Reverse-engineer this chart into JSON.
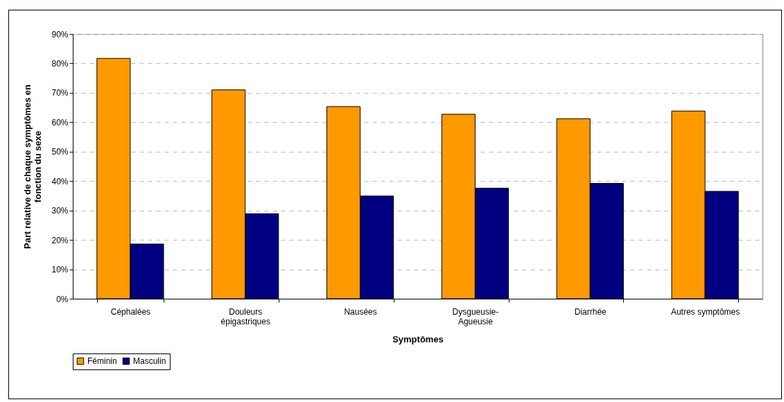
{
  "chart_data": {
    "type": "bar",
    "xlabel": "Symptômes",
    "ylabel": "Part relative de chaque symptômes en fonction du sexe",
    "categories": [
      "Céphalées",
      "Douleurs épigastriques",
      "Nausées",
      "Dysgueusie-Agueusie",
      "Diarrhée",
      "Autres symptômes"
    ],
    "series": [
      {
        "name": "Féminin",
        "color": "#ff9900",
        "values": [
          81.7,
          71.0,
          65.3,
          62.7,
          61.2,
          63.8
        ]
      },
      {
        "name": "Masculin",
        "color": "#000080",
        "values": [
          18.6,
          28.9,
          34.9,
          37.6,
          39.2,
          36.5
        ]
      }
    ],
    "ylim": [
      0,
      90
    ],
    "yticks": [
      {
        "value": 0,
        "label": "0%"
      },
      {
        "value": 10,
        "label": "10%"
      },
      {
        "value": 20,
        "label": "20%"
      },
      {
        "value": 30,
        "label": "30%"
      },
      {
        "value": 40,
        "label": "40%"
      },
      {
        "value": 50,
        "label": "50%"
      },
      {
        "value": 60,
        "label": "60%"
      },
      {
        "value": 70,
        "label": "70%"
      },
      {
        "value": 80,
        "label": "80%"
      },
      {
        "value": 90,
        "label": "90%"
      }
    ],
    "grid": "y",
    "legend": "bottom"
  }
}
